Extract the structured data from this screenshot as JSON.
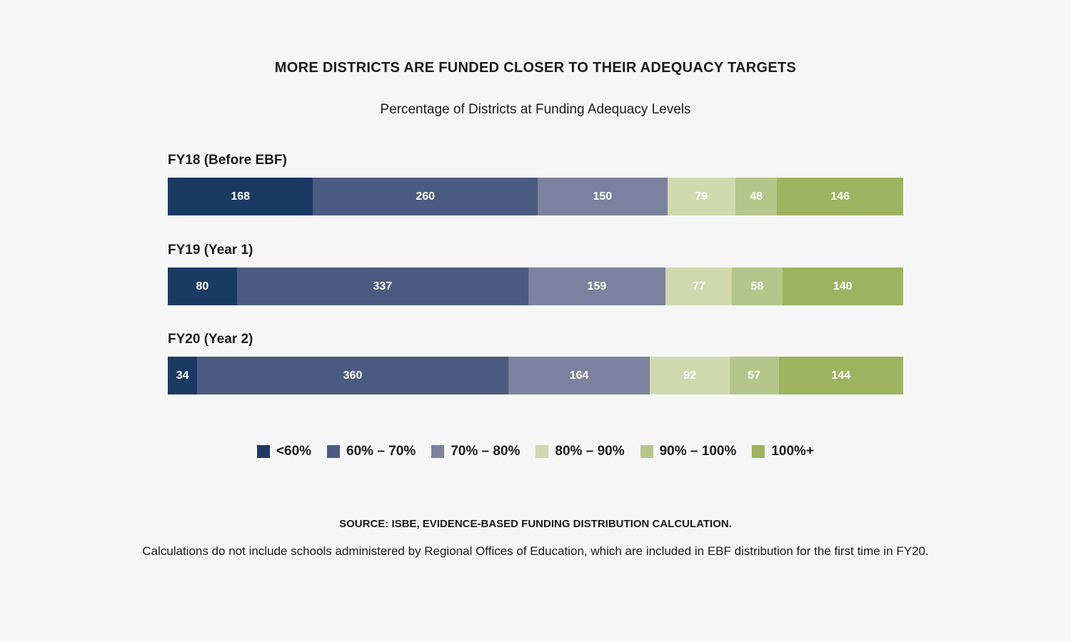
{
  "chart_data": {
    "type": "bar",
    "orientation": "horizontal",
    "stacked": true,
    "title": "MORE DISTRICTS ARE FUNDED CLOSER TO THEIR ADEQUACY TARGETS",
    "subtitle": "Percentage of Districts at Funding Adequacy Levels",
    "categories": [
      "FY18 (Before EBF)",
      "FY19 (Year 1)",
      "FY20 (Year 2)"
    ],
    "series": [
      {
        "name": "<60%",
        "color": "#1b3a63",
        "values": [
          168,
          80,
          34
        ]
      },
      {
        "name": "60% – 70%",
        "color": "#4b5a80",
        "values": [
          260,
          337,
          360
        ]
      },
      {
        "name": "70% – 80%",
        "color": "#7b819e",
        "values": [
          150,
          159,
          164
        ]
      },
      {
        "name": "80% – 90%",
        "color": "#d0d9ae",
        "values": [
          79,
          77,
          92
        ]
      },
      {
        "name": "90% – 100%",
        "color": "#b5c68a",
        "values": [
          48,
          58,
          57
        ]
      },
      {
        "name": "100%+",
        "color": "#9db35f",
        "values": [
          146,
          140,
          144
        ]
      }
    ],
    "legend_position": "bottom",
    "grid": false
  },
  "source": "SOURCE: ISBE, EVIDENCE-BASED FUNDING DISTRIBUTION CALCULATION.",
  "note": "Calculations do not include schools administered by Regional Offices of Education, which are included in EBF distribution for the first time in FY20."
}
